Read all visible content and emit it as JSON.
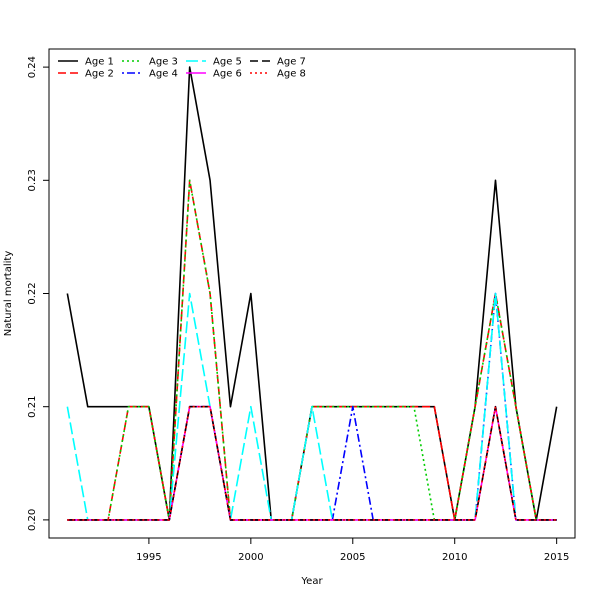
{
  "chart_data": {
    "type": "line",
    "xlabel": "Year",
    "ylabel": "Natural mortality",
    "xlim": [
      1990.1,
      2015.9
    ],
    "ylim": [
      0.1984,
      0.2416
    ],
    "xticks": [
      1995,
      2000,
      2005,
      2010,
      2015
    ],
    "yticks": [
      0.2,
      0.21,
      0.22,
      0.23,
      0.24
    ],
    "ytick_labels": [
      "0.20",
      "0.21",
      "0.22",
      "0.23",
      "0.24"
    ],
    "legend_position": "top-left",
    "x": [
      1991,
      1992,
      1993,
      1994,
      1995,
      1996,
      1997,
      1998,
      1999,
      2000,
      2001,
      2002,
      2003,
      2004,
      2005,
      2006,
      2007,
      2008,
      2009,
      2010,
      2011,
      2012,
      2013,
      2014,
      2015
    ],
    "series": [
      {
        "name": "Age 1",
        "color": "#000000",
        "dash": "solid",
        "values": [
          0.22,
          0.21,
          0.21,
          0.21,
          0.21,
          0.2,
          0.24,
          0.23,
          0.21,
          0.22,
          0.2,
          0.2,
          0.21,
          0.21,
          0.21,
          0.21,
          0.21,
          0.21,
          0.21,
          0.2,
          0.21,
          0.23,
          0.21,
          0.2,
          0.21
        ]
      },
      {
        "name": "Age 2",
        "color": "#ff0000",
        "dash": "dashed",
        "values": [
          0.2,
          0.2,
          0.2,
          0.21,
          0.21,
          0.2,
          0.23,
          0.22,
          0.2,
          0.2,
          0.2,
          0.2,
          0.21,
          0.21,
          0.21,
          0.21,
          0.21,
          0.21,
          0.21,
          0.2,
          0.21,
          0.22,
          0.21,
          0.2,
          0.2
        ]
      },
      {
        "name": "Age 3",
        "color": "#00cd00",
        "dash": "dotted",
        "values": [
          0.2,
          0.2,
          0.2,
          0.21,
          0.21,
          0.2,
          0.23,
          0.22,
          0.2,
          0.2,
          0.2,
          0.2,
          0.21,
          0.21,
          0.21,
          0.21,
          0.21,
          0.21,
          0.2,
          0.2,
          0.21,
          0.22,
          0.21,
          0.2,
          0.2
        ]
      },
      {
        "name": "Age 4",
        "color": "#0000ff",
        "dash": "dotdash",
        "values": [
          0.2,
          0.2,
          0.2,
          0.2,
          0.2,
          0.2,
          0.21,
          0.21,
          0.2,
          0.2,
          0.2,
          0.2,
          0.2,
          0.2,
          0.21,
          0.2,
          0.2,
          0.2,
          0.2,
          0.2,
          0.2,
          0.22,
          0.2,
          0.2,
          0.2
        ]
      },
      {
        "name": "Age 5",
        "color": "#00ffff",
        "dash": "longdash",
        "values": [
          0.21,
          0.2,
          0.2,
          0.2,
          0.2,
          0.2,
          0.22,
          0.21,
          0.2,
          0.21,
          0.2,
          0.2,
          0.21,
          0.2,
          0.2,
          0.2,
          0.2,
          0.2,
          0.2,
          0.2,
          0.2,
          0.22,
          0.2,
          0.2,
          0.2
        ]
      },
      {
        "name": "Age 6",
        "color": "#ff00ff",
        "dash": "solid",
        "values": [
          0.2,
          0.2,
          0.2,
          0.2,
          0.2,
          0.2,
          0.21,
          0.21,
          0.2,
          0.2,
          0.2,
          0.2,
          0.2,
          0.2,
          0.2,
          0.2,
          0.2,
          0.2,
          0.2,
          0.2,
          0.2,
          0.21,
          0.2,
          0.2,
          0.2
        ]
      },
      {
        "name": "Age 7",
        "color": "#000000",
        "dash": "dashed",
        "values": [
          0.2,
          0.2,
          0.2,
          0.2,
          0.2,
          0.2,
          0.21,
          0.21,
          0.2,
          0.2,
          0.2,
          0.2,
          0.2,
          0.2,
          0.2,
          0.2,
          0.2,
          0.2,
          0.2,
          0.2,
          0.2,
          0.21,
          0.2,
          0.2,
          0.2
        ]
      },
      {
        "name": "Age 8",
        "color": "#ff0000",
        "dash": "dotted",
        "values": [
          0.2,
          0.2,
          0.2,
          0.2,
          0.2,
          0.2,
          0.21,
          0.21,
          0.2,
          0.2,
          0.2,
          0.2,
          0.2,
          0.2,
          0.2,
          0.2,
          0.2,
          0.2,
          0.2,
          0.2,
          0.2,
          0.21,
          0.2,
          0.2,
          0.2
        ]
      }
    ]
  }
}
